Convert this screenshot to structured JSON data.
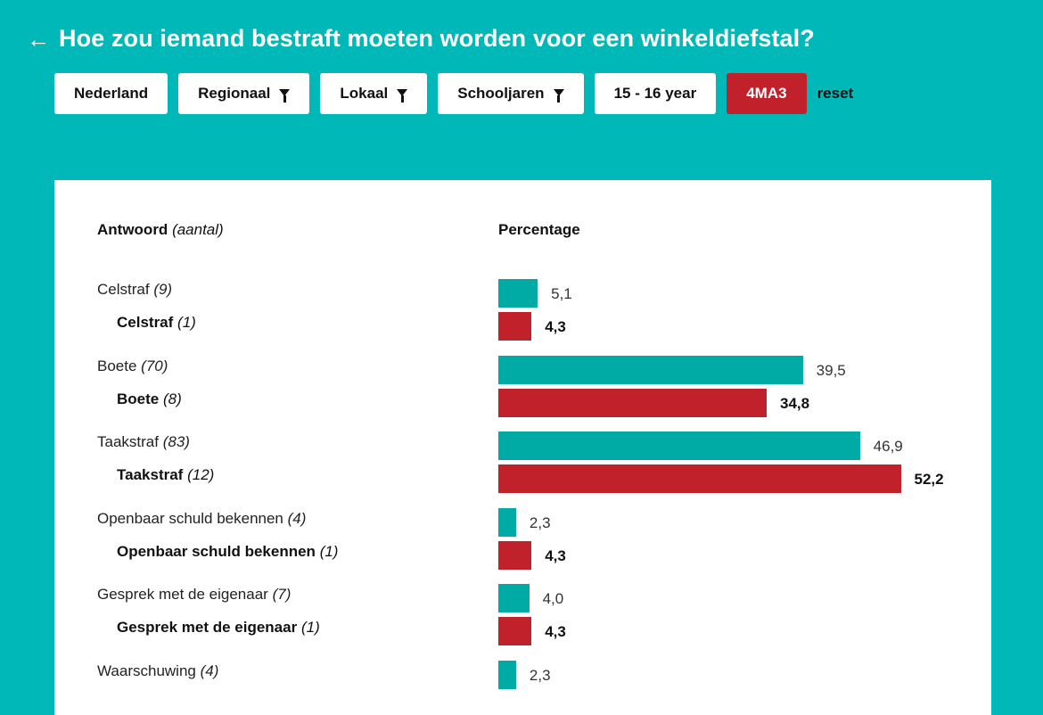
{
  "header": {
    "back_icon": "arrow-left-icon",
    "title": "Hoe zou iemand bestraft moeten worden voor een winkeldiefstal?"
  },
  "filters": [
    {
      "label": "Nederland",
      "funnel": false,
      "active": false
    },
    {
      "label": "Regionaal",
      "funnel": true,
      "active": false
    },
    {
      "label": "Lokaal",
      "funnel": true,
      "active": false
    },
    {
      "label": "Schooljaren",
      "funnel": true,
      "active": false
    },
    {
      "label": "15 - 16 year",
      "funnel": false,
      "active": false
    },
    {
      "label": "4MA3",
      "funnel": false,
      "active": true
    }
  ],
  "reset_label": "reset",
  "table": {
    "answer_header": "Antwoord",
    "count_header": "(aantal)",
    "percentage_header": "Percentage"
  },
  "colors": {
    "national": "#00aaa5",
    "local": "#c0212a",
    "background": "#00b8b8"
  },
  "chart_data": {
    "type": "bar",
    "categories": [
      "Celstraf",
      "Boete",
      "Taakstraf",
      "Openbaar schuld bekennen",
      "Gesprek met de eigenaar",
      "Waarschuwing"
    ],
    "rows": [
      {
        "label": "Celstraf",
        "count": "(9)",
        "value": "5,1",
        "pct": 5.1,
        "local_label": "Celstraf",
        "local_count": "(1)",
        "local_value": "4,3",
        "local_pct": 4.3
      },
      {
        "label": "Boete",
        "count": "(70)",
        "value": "39,5",
        "pct": 39.5,
        "local_label": "Boete",
        "local_count": "(8)",
        "local_value": "34,8",
        "local_pct": 34.8
      },
      {
        "label": "Taakstraf",
        "count": "(83)",
        "value": "46,9",
        "pct": 46.9,
        "local_label": "Taakstraf",
        "local_count": "(12)",
        "local_value": "52,2",
        "local_pct": 52.2
      },
      {
        "label": "Openbaar schuld bekennen",
        "count": "(4)",
        "value": "2,3",
        "pct": 2.3,
        "local_label": "Openbaar schuld bekennen",
        "local_count": "(1)",
        "local_value": "4,3",
        "local_pct": 4.3
      },
      {
        "label": "Gesprek met de eigenaar",
        "count": "(7)",
        "value": "4,0",
        "pct": 4.0,
        "local_label": "Gesprek met de eigenaar",
        "local_count": "(1)",
        "local_value": "4,3",
        "local_pct": 4.3
      },
      {
        "label": "Waarschuwing",
        "count": "(4)",
        "value": "2,3",
        "pct": 2.3
      }
    ]
  }
}
